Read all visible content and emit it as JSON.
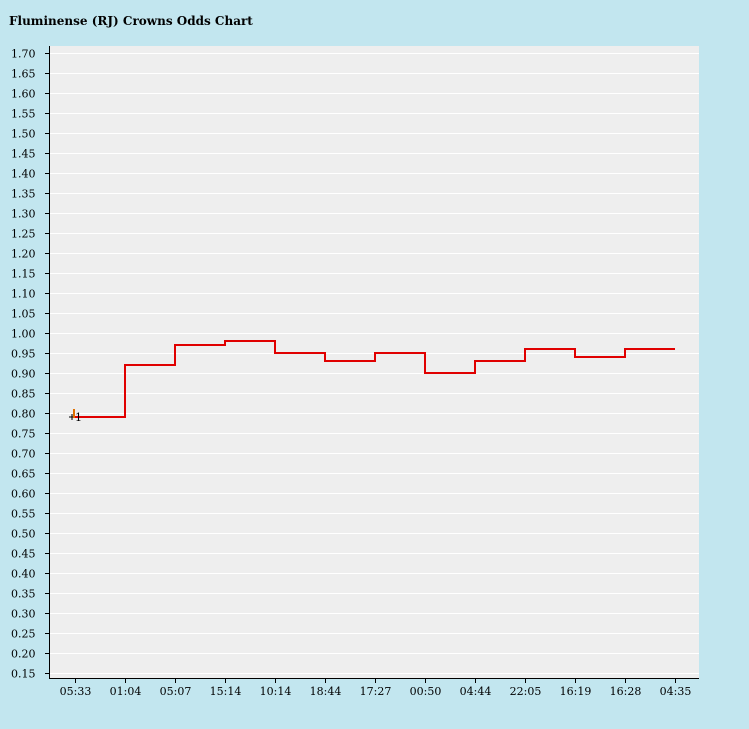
{
  "chart_data": {
    "type": "line",
    "step": true,
    "title": "Fluminense (RJ) Crowns Odds Chart",
    "categories": [
      "05:33",
      "01:04",
      "05:07",
      "15:14",
      "10:14",
      "18:44",
      "17:27",
      "00:50",
      "04:44",
      "22:05",
      "16:19",
      "16:28",
      "04:35"
    ],
    "series": [
      {
        "name": "Crowns odds",
        "color": "#e00000",
        "values": [
          0.79,
          0.92,
          0.97,
          0.98,
          0.95,
          0.93,
          0.95,
          0.9,
          0.93,
          0.96,
          0.94,
          0.96,
          0.96
        ]
      }
    ],
    "marker": {
      "label": "1",
      "value": 0.79
    },
    "ylim": [
      0.15,
      1.7
    ],
    "ytick_step": 0.05,
    "xlabel": "",
    "ylabel": "",
    "grid": true
  },
  "colors": {
    "page_bg": "#c2e6ef",
    "plot_bg": "#eeeeee",
    "grid": "#ffffff",
    "line": "#e00000"
  }
}
